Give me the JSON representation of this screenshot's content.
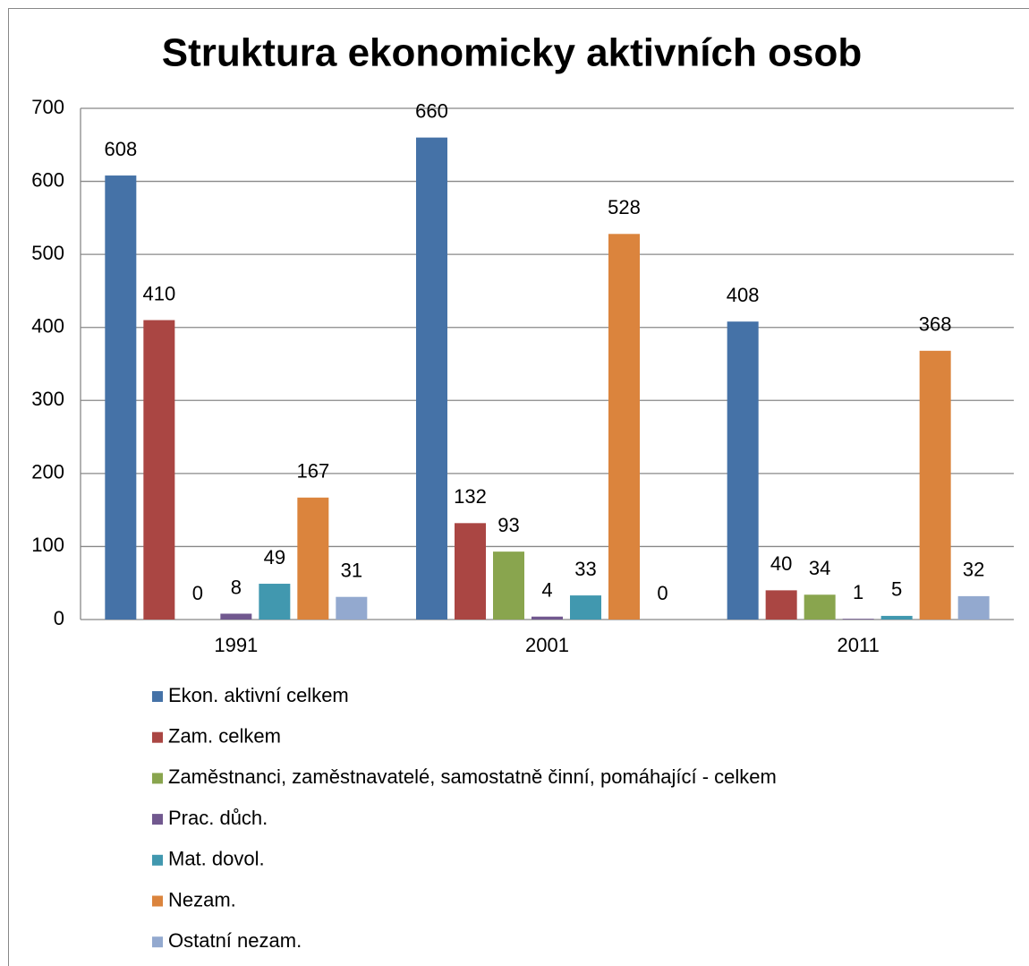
{
  "chart_data": {
    "type": "bar",
    "title": "Struktura ekonomicky aktivních osob",
    "categories": [
      "1991",
      "2001",
      "2011"
    ],
    "series": [
      {
        "name": "Ekon. aktivní celkem",
        "color": "#4572a7",
        "values": [
          608,
          660,
          408
        ]
      },
      {
        "name": "Zam. celkem",
        "color": "#aa4643",
        "values": [
          410,
          132,
          40
        ]
      },
      {
        "name": "Zaměstnanci, zaměstnavatelé, samostatně činní, pomáhající - celkem",
        "color": "#89a54e",
        "values": [
          0,
          93,
          34
        ]
      },
      {
        "name": "Prac. důch.",
        "color": "#71588f",
        "values": [
          8,
          4,
          1
        ]
      },
      {
        "name": "Mat. dovol.",
        "color": "#4198af",
        "values": [
          49,
          33,
          5
        ]
      },
      {
        "name": "Nezam.",
        "color": "#db843d",
        "values": [
          167,
          528,
          368
        ]
      },
      {
        "name": "Ostatní nezam.",
        "color": "#93a9cf",
        "values": [
          31,
          0,
          32
        ]
      }
    ],
    "ylim": [
      0,
      700
    ],
    "yticks": [
      0,
      100,
      200,
      300,
      400,
      500,
      600,
      700
    ],
    "grid": true,
    "legend": "bottom"
  }
}
